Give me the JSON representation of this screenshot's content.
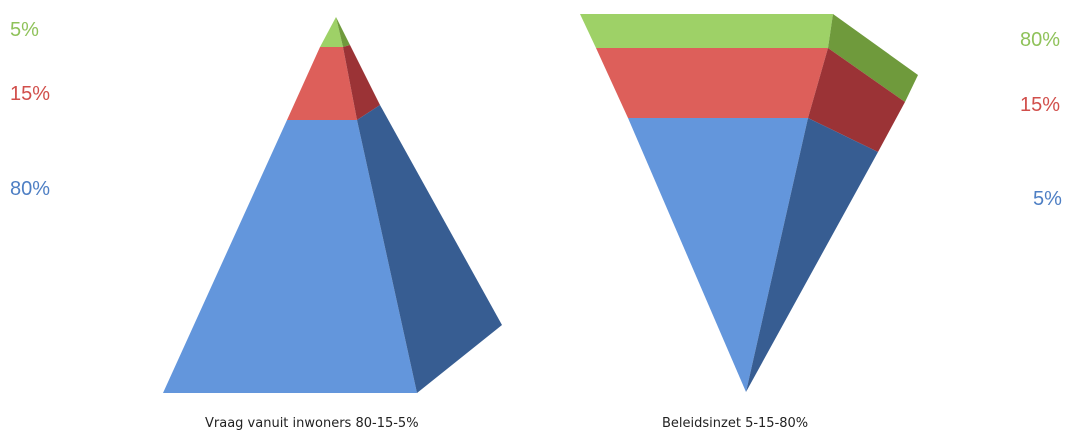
{
  "colors": {
    "green": "#9ed167",
    "green_side": "#6f9a3c",
    "red": "#dd5f5a",
    "red_side": "#9b3336",
    "blue": "#6396dc",
    "blue_side": "#375d92"
  },
  "left_figure": {
    "caption": "Vraag vanuit inwoners 80-15-5%",
    "labels": [
      {
        "text": "5%",
        "color": "green"
      },
      {
        "text": "15%",
        "color": "red"
      },
      {
        "text": "80%",
        "color": "blue"
      }
    ]
  },
  "right_figure": {
    "caption": "Beleidsinzet  5-15-80%",
    "labels": [
      {
        "text": "80%",
        "color": "green"
      },
      {
        "text": "15%",
        "color": "red"
      },
      {
        "text": "5%",
        "color": "blue"
      }
    ]
  }
}
